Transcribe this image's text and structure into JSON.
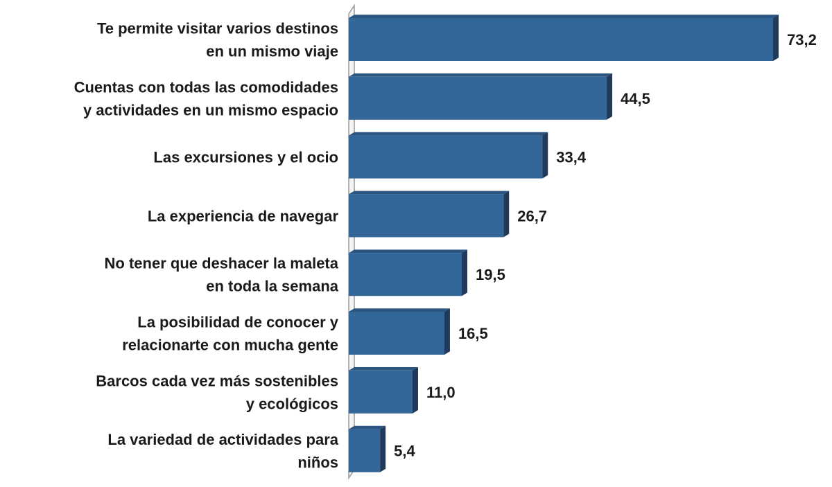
{
  "chart_data": {
    "type": "bar",
    "orientation": "horizontal",
    "categories": [
      [
        "Te permite visitar varios destinos",
        "en un mismo viaje"
      ],
      [
        "Cuentas con todas las comodidades",
        "y actividades en un mismo espacio"
      ],
      [
        "Las excursiones y el ocio"
      ],
      [
        "La experiencia de navegar"
      ],
      [
        "No tener que deshacer la maleta",
        "en toda la semana"
      ],
      [
        "La posibilidad de conocer y",
        "relacionarte con mucha gente"
      ],
      [
        "Barcos cada vez más sostenibles",
        "y ecológicos"
      ],
      [
        "La variedad de actividades para",
        "niños"
      ]
    ],
    "values": [
      73.2,
      44.5,
      33.4,
      26.7,
      19.5,
      16.5,
      11.0,
      5.4
    ],
    "value_labels": [
      "73,2",
      "44,5",
      "33,4",
      "26,7",
      "19,5",
      "16,5",
      "11,0",
      "5,4"
    ],
    "xlim": [
      0,
      73.2
    ],
    "grid": false,
    "legend": "none",
    "bar_color": "#336699",
    "bar_side_color": "#1f3a5c",
    "bar_top_color": "#2a5580"
  }
}
